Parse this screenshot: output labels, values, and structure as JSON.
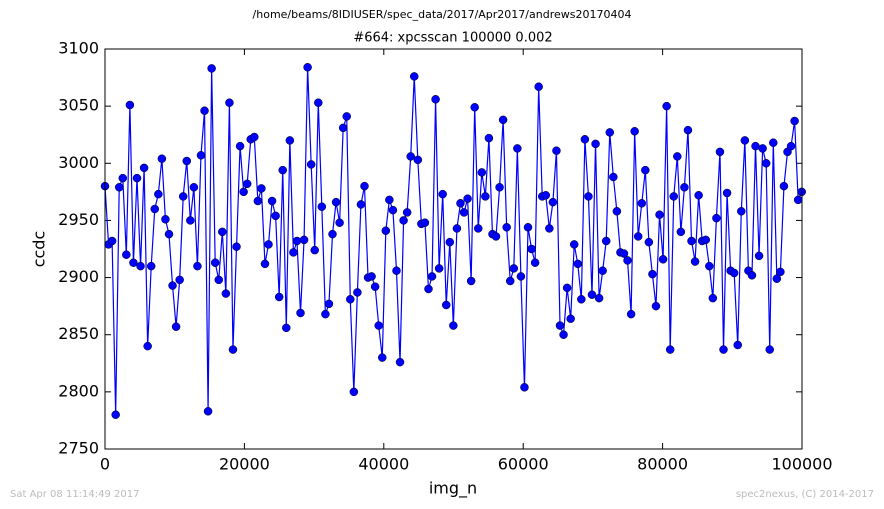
{
  "header": "/home/beams/8IDIUSER/spec_data/2017/Apr2017/andrews20170404",
  "footer_left": "Sat Apr 08 11:14:49 2017",
  "footer_right": "spec2nexus, (C) 2014-2017",
  "chart_data": {
    "type": "line",
    "title": "#664: xpcsscan 100000 0.002",
    "x_label": "img_n",
    "y_label": "ccdc",
    "xlim": [
      0,
      100000
    ],
    "xticks": [
      0,
      20000,
      40000,
      60000,
      80000,
      100000
    ],
    "ylim": [
      2750,
      3100
    ],
    "yticks": [
      2750,
      2800,
      2850,
      2900,
      2950,
      3000,
      3050,
      3100
    ],
    "grid": false,
    "x": [
      0,
      510,
      1020,
      1530,
      2040,
      2550,
      3060,
      3570,
      4080,
      4590,
      5100,
      5610,
      6120,
      6630,
      7140,
      7650,
      8160,
      8670,
      9180,
      9690,
      10200,
      10710,
      11220,
      11730,
      12240,
      12750,
      13260,
      13770,
      14280,
      14790,
      15300,
      15810,
      16320,
      16830,
      17340,
      17850,
      18360,
      18870,
      19380,
      19890,
      20400,
      20910,
      21420,
      21930,
      22440,
      22950,
      23460,
      23970,
      24480,
      24990,
      25500,
      26010,
      26520,
      27030,
      27540,
      28050,
      28560,
      29070,
      29580,
      30090,
      30600,
      31110,
      31620,
      32130,
      32640,
      33150,
      33660,
      34170,
      34680,
      35190,
      35700,
      36210,
      36720,
      37230,
      37740,
      38250,
      38760,
      39270,
      39780,
      40290,
      40800,
      41310,
      41820,
      42330,
      42840,
      43350,
      43860,
      44370,
      44880,
      45390,
      45900,
      46410,
      46920,
      47430,
      47940,
      48450,
      48960,
      49470,
      49980,
      50490,
      51000,
      51510,
      52020,
      52530,
      53040,
      53550,
      54060,
      54570,
      55080,
      55590,
      56100,
      56610,
      57120,
      57630,
      58140,
      58650,
      59160,
      59670,
      60180,
      60690,
      61200,
      61710,
      62220,
      62730,
      63240,
      63750,
      64260,
      64770,
      65280,
      65790,
      66300,
      66810,
      67320,
      67830,
      68340,
      68850,
      69360,
      69870,
      70380,
      70890,
      71400,
      71910,
      72420,
      72930,
      73440,
      73950,
      74460,
      74970,
      75480,
      75990,
      76500,
      77010,
      77520,
      78030,
      78540,
      79050,
      79560,
      80070,
      80580,
      81090,
      81600,
      82110,
      82620,
      83130,
      83640,
      84150,
      84660,
      85170,
      85680,
      86190,
      86700,
      87210,
      87720,
      88230,
      88740,
      89250,
      89760,
      90270,
      90780,
      91290,
      91800,
      92310,
      92820,
      93330,
      93840,
      94350,
      94860,
      95370,
      95880,
      96390,
      96900,
      97410,
      97920,
      98430,
      98940,
      99450,
      99960
    ],
    "series": [
      {
        "color": "#0000ff",
        "values": [
          2980,
          2929,
          2932,
          2780,
          2979,
          2987,
          2920,
          3051,
          2913,
          2987,
          2910,
          2996,
          2840,
          2910,
          2960,
          2973,
          3004,
          2951,
          2938,
          2893,
          2857,
          2898,
          2971,
          3002,
          2950,
          2979,
          2910,
          3007,
          3046,
          2783,
          3083,
          2913,
          2898,
          2940,
          2886,
          3053,
          2837,
          2927,
          3015,
          2975,
          2982,
          3021,
          3023,
          2967,
          2978,
          2912,
          2929,
          2967,
          2954,
          2883,
          2994,
          2856,
          3020,
          2922,
          2932,
          2869,
          2933,
          3084,
          2999,
          2924,
          3053,
          2962,
          2868,
          2877,
          2938,
          2966,
          2948,
          3031,
          3041,
          2881,
          2800,
          2887,
          2964,
          2980,
          2900,
          2901,
          2892,
          2858,
          2830,
          2941,
          2968,
          2959,
          2906,
          2826,
          2950,
          2957,
          3006,
          3076,
          3003,
          2947,
          2948,
          2890,
          2901,
          3056,
          2908,
          2973,
          2876,
          2931,
          2858,
          2943,
          2965,
          2957,
          2969,
          2897,
          3049,
          2943,
          2992,
          2971,
          3022,
          2938,
          2936,
          2979,
          3038,
          2944,
          2897,
          2908,
          3013,
          2901,
          2804,
          2944,
          2925,
          2913,
          3067,
          2971,
          2972,
          2943,
          2966,
          3011,
          2858,
          2850,
          2891,
          2864,
          2929,
          2912,
          2881,
          3021,
          2971,
          2885,
          3017,
          2882,
          2906,
          2932,
          3027,
          2988,
          2958,
          2922,
          2921,
          2915,
          2868,
          3028,
          2936,
          2965,
          2994,
          2931,
          2903,
          2875,
          2955,
          2916,
          3050,
          2837,
          2971,
          3006,
          2940,
          2979,
          3029,
          2932,
          2914,
          2972,
          2932,
          2933,
          2910,
          2882,
          2952,
          3010,
          2837,
          2974,
          2906,
          2904,
          2841,
          2958,
          3020,
          2906,
          2902,
          3015,
          2919,
          3013,
          3000,
          2837,
          3018,
          2899,
          2905,
          2980,
          3010,
          3015,
          3037,
          2968,
          2975
        ]
      }
    ]
  }
}
